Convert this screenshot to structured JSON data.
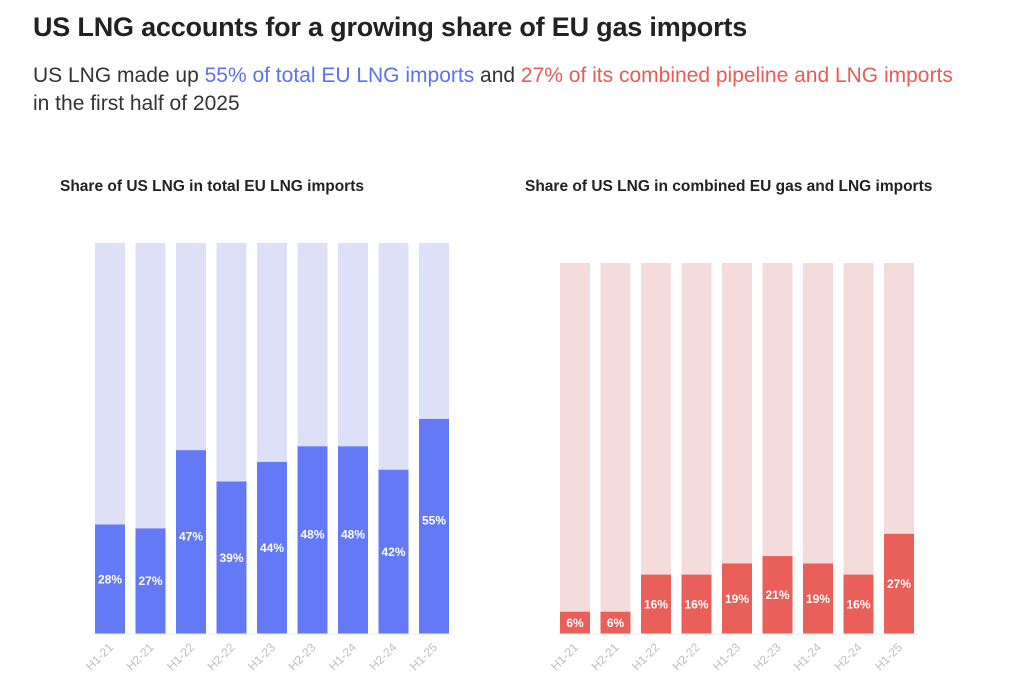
{
  "title": "US LNG accounts for a growing share of EU gas imports",
  "subtitle": {
    "part1": "US LNG made up ",
    "highlight_blue": "55% of total EU LNG imports",
    "part2": " and ",
    "highlight_red": "27% of its combined pipeline and LNG imports",
    "part3": " in the first half of 2025"
  },
  "colors": {
    "blue_bar": "#6479f5",
    "blue_bg": "#dde0f6",
    "red_bar": "#e95f59",
    "red_bg": "#f5dcdc"
  },
  "chart_data": [
    {
      "type": "bar",
      "title": "Share of US LNG in total EU LNG imports",
      "categories": [
        "H1-21",
        "H2-21",
        "H1-22",
        "H2-22",
        "H1-23",
        "H2-23",
        "H1-24",
        "H2-24",
        "H1-25"
      ],
      "values": [
        28,
        27,
        47,
        39,
        44,
        48,
        48,
        42,
        55
      ],
      "labels": [
        "28%",
        "27%",
        "47%",
        "39%",
        "44%",
        "48%",
        "48%",
        "42%",
        "55%"
      ],
      "ylim": [
        0,
        100
      ],
      "unit": "%"
    },
    {
      "type": "bar",
      "title": "Share of US LNG in combined EU gas and LNG imports",
      "categories": [
        "H1-21",
        "H2-21",
        "H1-22",
        "H2-22",
        "H1-23",
        "H2-23",
        "H1-24",
        "H2-24",
        "H1-25"
      ],
      "values": [
        6,
        6,
        16,
        16,
        19,
        21,
        19,
        16,
        27
      ],
      "labels": [
        "6%",
        "6%",
        "16%",
        "16%",
        "19%",
        "21%",
        "19%",
        "16%",
        "27%"
      ],
      "ylim": [
        0,
        100
      ],
      "unit": "%"
    }
  ]
}
